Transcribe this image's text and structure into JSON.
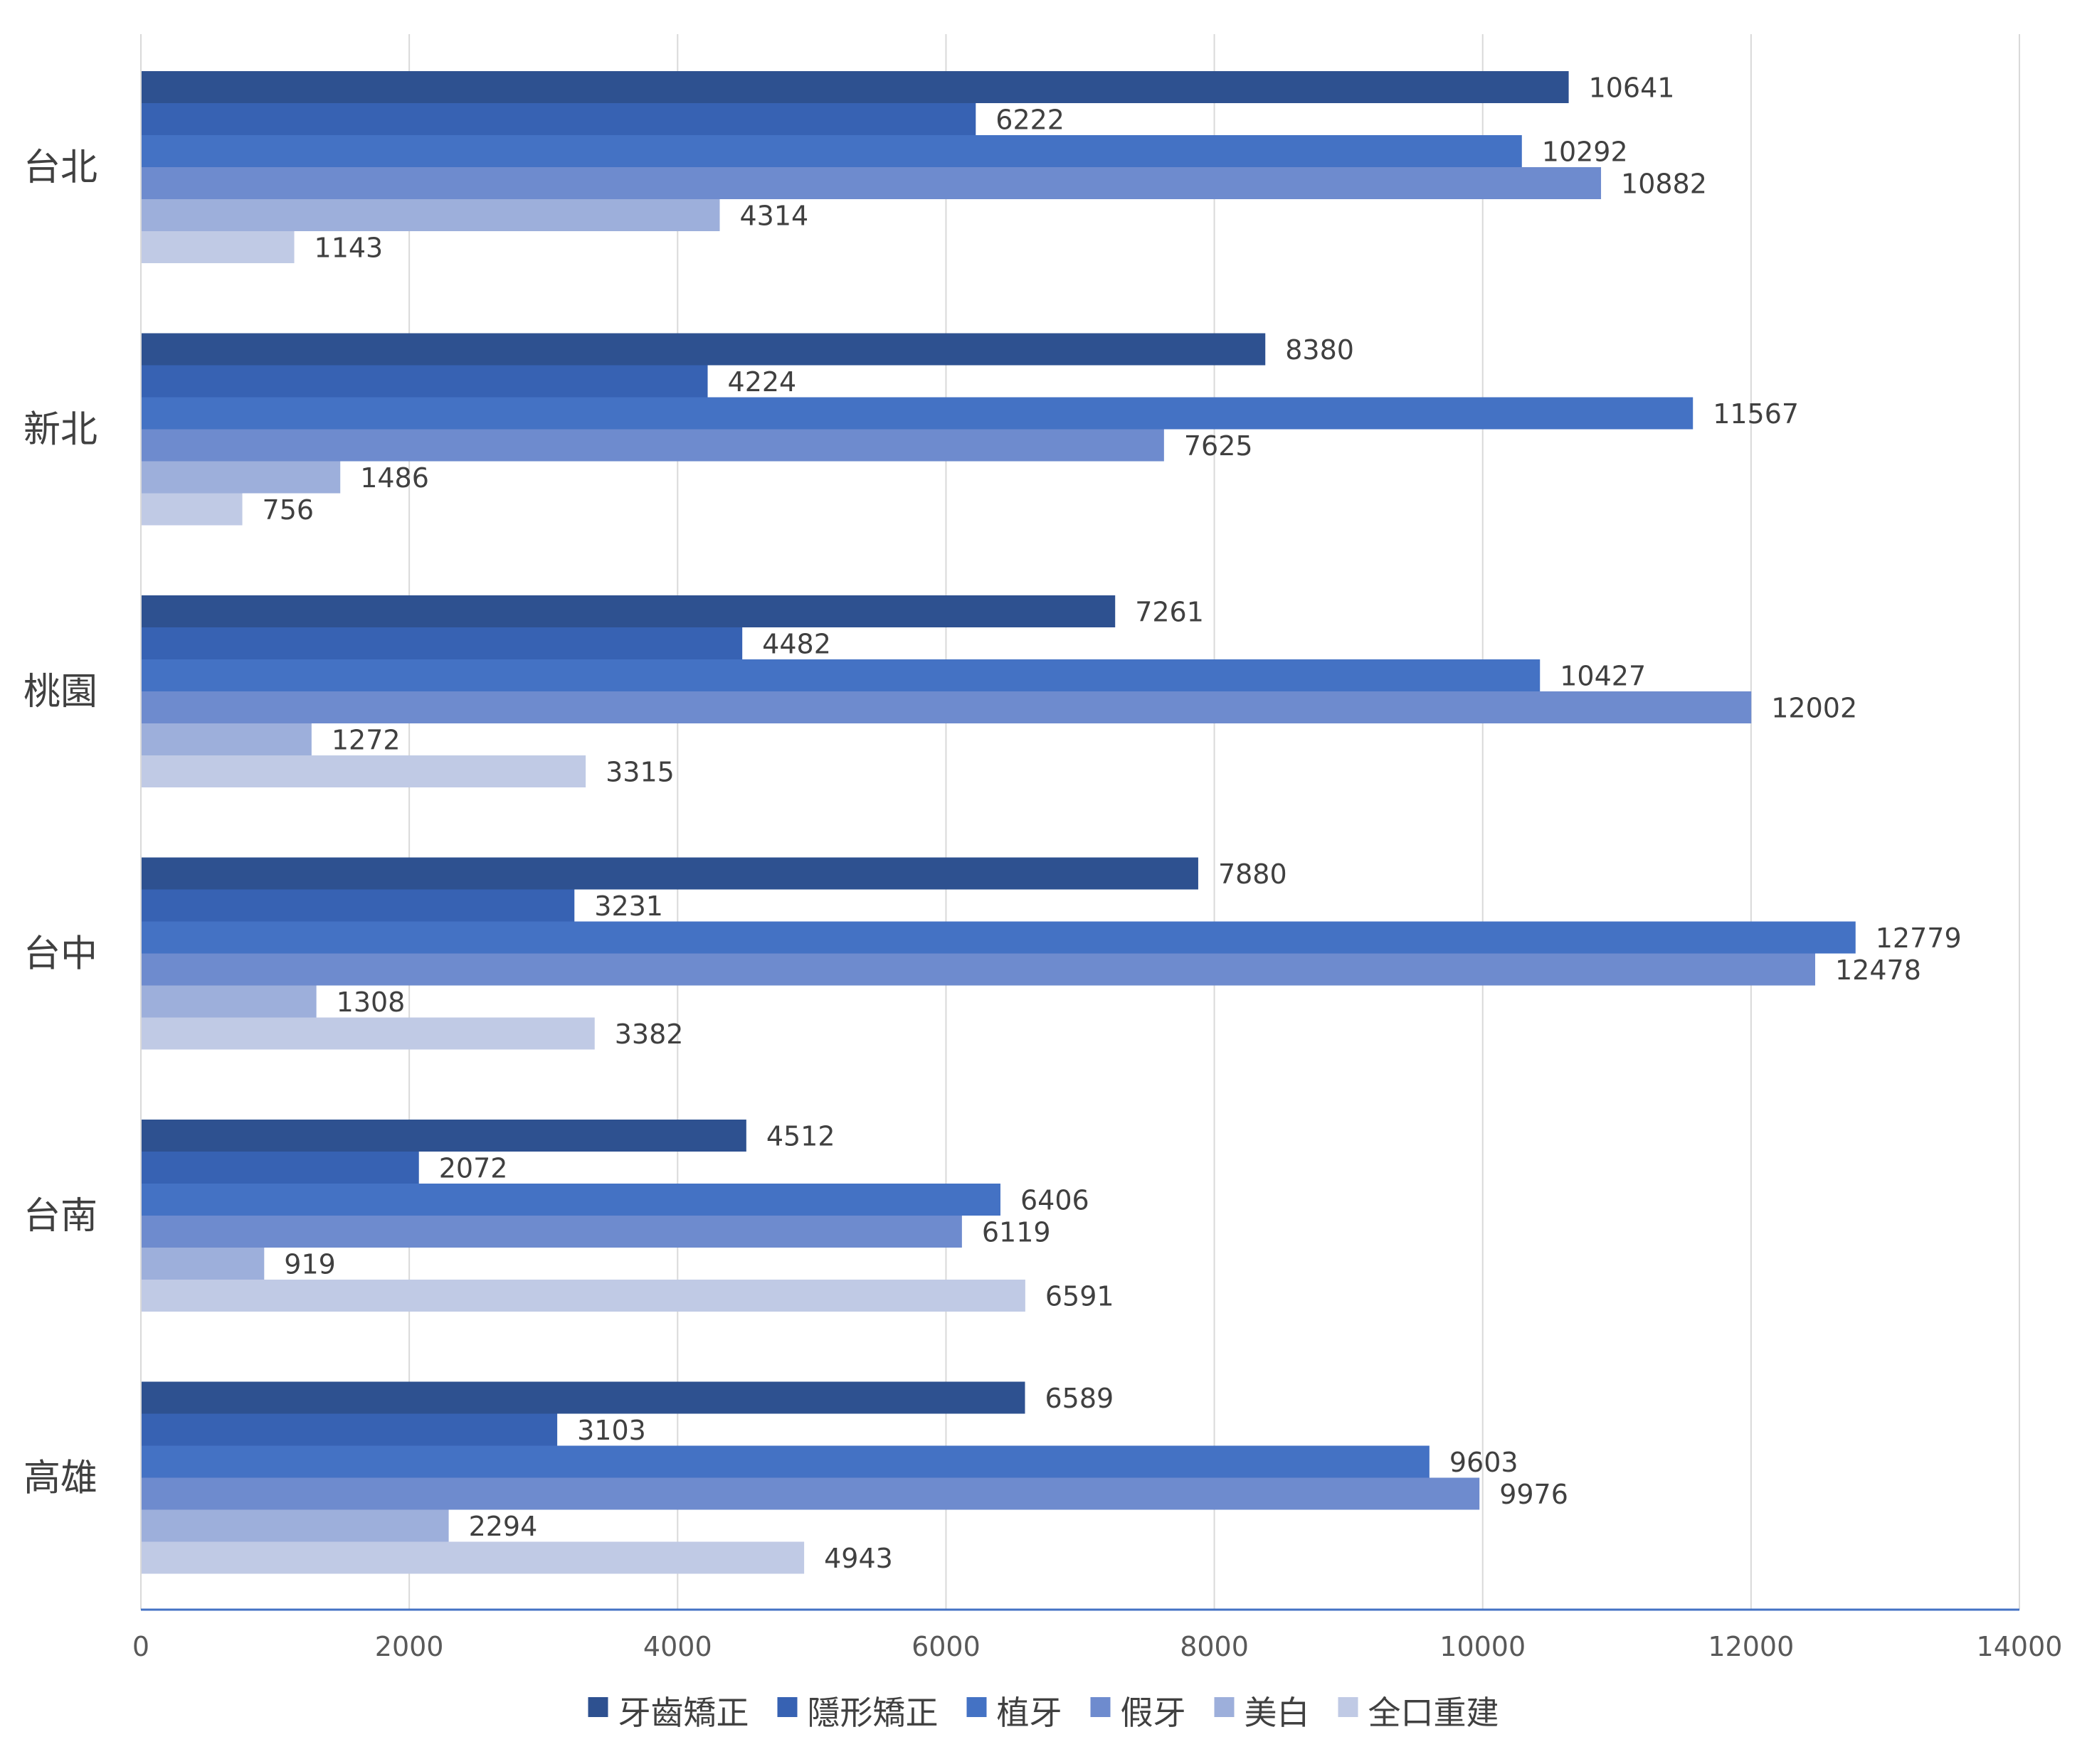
{
  "chart_data": {
    "type": "bar",
    "orientation": "horizontal",
    "title": "",
    "xlabel": "",
    "ylabel": "",
    "categories": [
      "台北",
      "新北",
      "桃園",
      "台中",
      "台南",
      "高雄"
    ],
    "xlim": [
      0,
      14000
    ],
    "x_ticks": [
      0,
      2000,
      4000,
      6000,
      8000,
      10000,
      12000,
      14000
    ],
    "grid": true,
    "legend_position": "bottom",
    "data_labels": true,
    "series": [
      {
        "name": "牙齒矯正",
        "color": "#2E5190",
        "values": [
          10641,
          8380,
          7261,
          7880,
          4512,
          6589
        ]
      },
      {
        "name": "隱形矯正",
        "color": "#3762B3",
        "values": [
          6222,
          4224,
          4482,
          3231,
          2072,
          3103
        ]
      },
      {
        "name": "植牙",
        "color": "#4472C4",
        "values": [
          10292,
          11567,
          10427,
          12779,
          6406,
          9603
        ]
      },
      {
        "name": "假牙",
        "color": "#6E8BCE",
        "values": [
          10882,
          7625,
          12002,
          12478,
          6119,
          9976
        ]
      },
      {
        "name": "美白",
        "color": "#9DAFDB",
        "values": [
          4314,
          1486,
          1272,
          1308,
          919,
          2294
        ]
      },
      {
        "name": "全口重建",
        "color": "#C0CAE5",
        "values": [
          1143,
          756,
          3315,
          3382,
          6591,
          4943
        ]
      }
    ]
  },
  "colors": {
    "gridline": "#D9D9D9",
    "axis_line": "#4472C4",
    "text": "#404040"
  }
}
